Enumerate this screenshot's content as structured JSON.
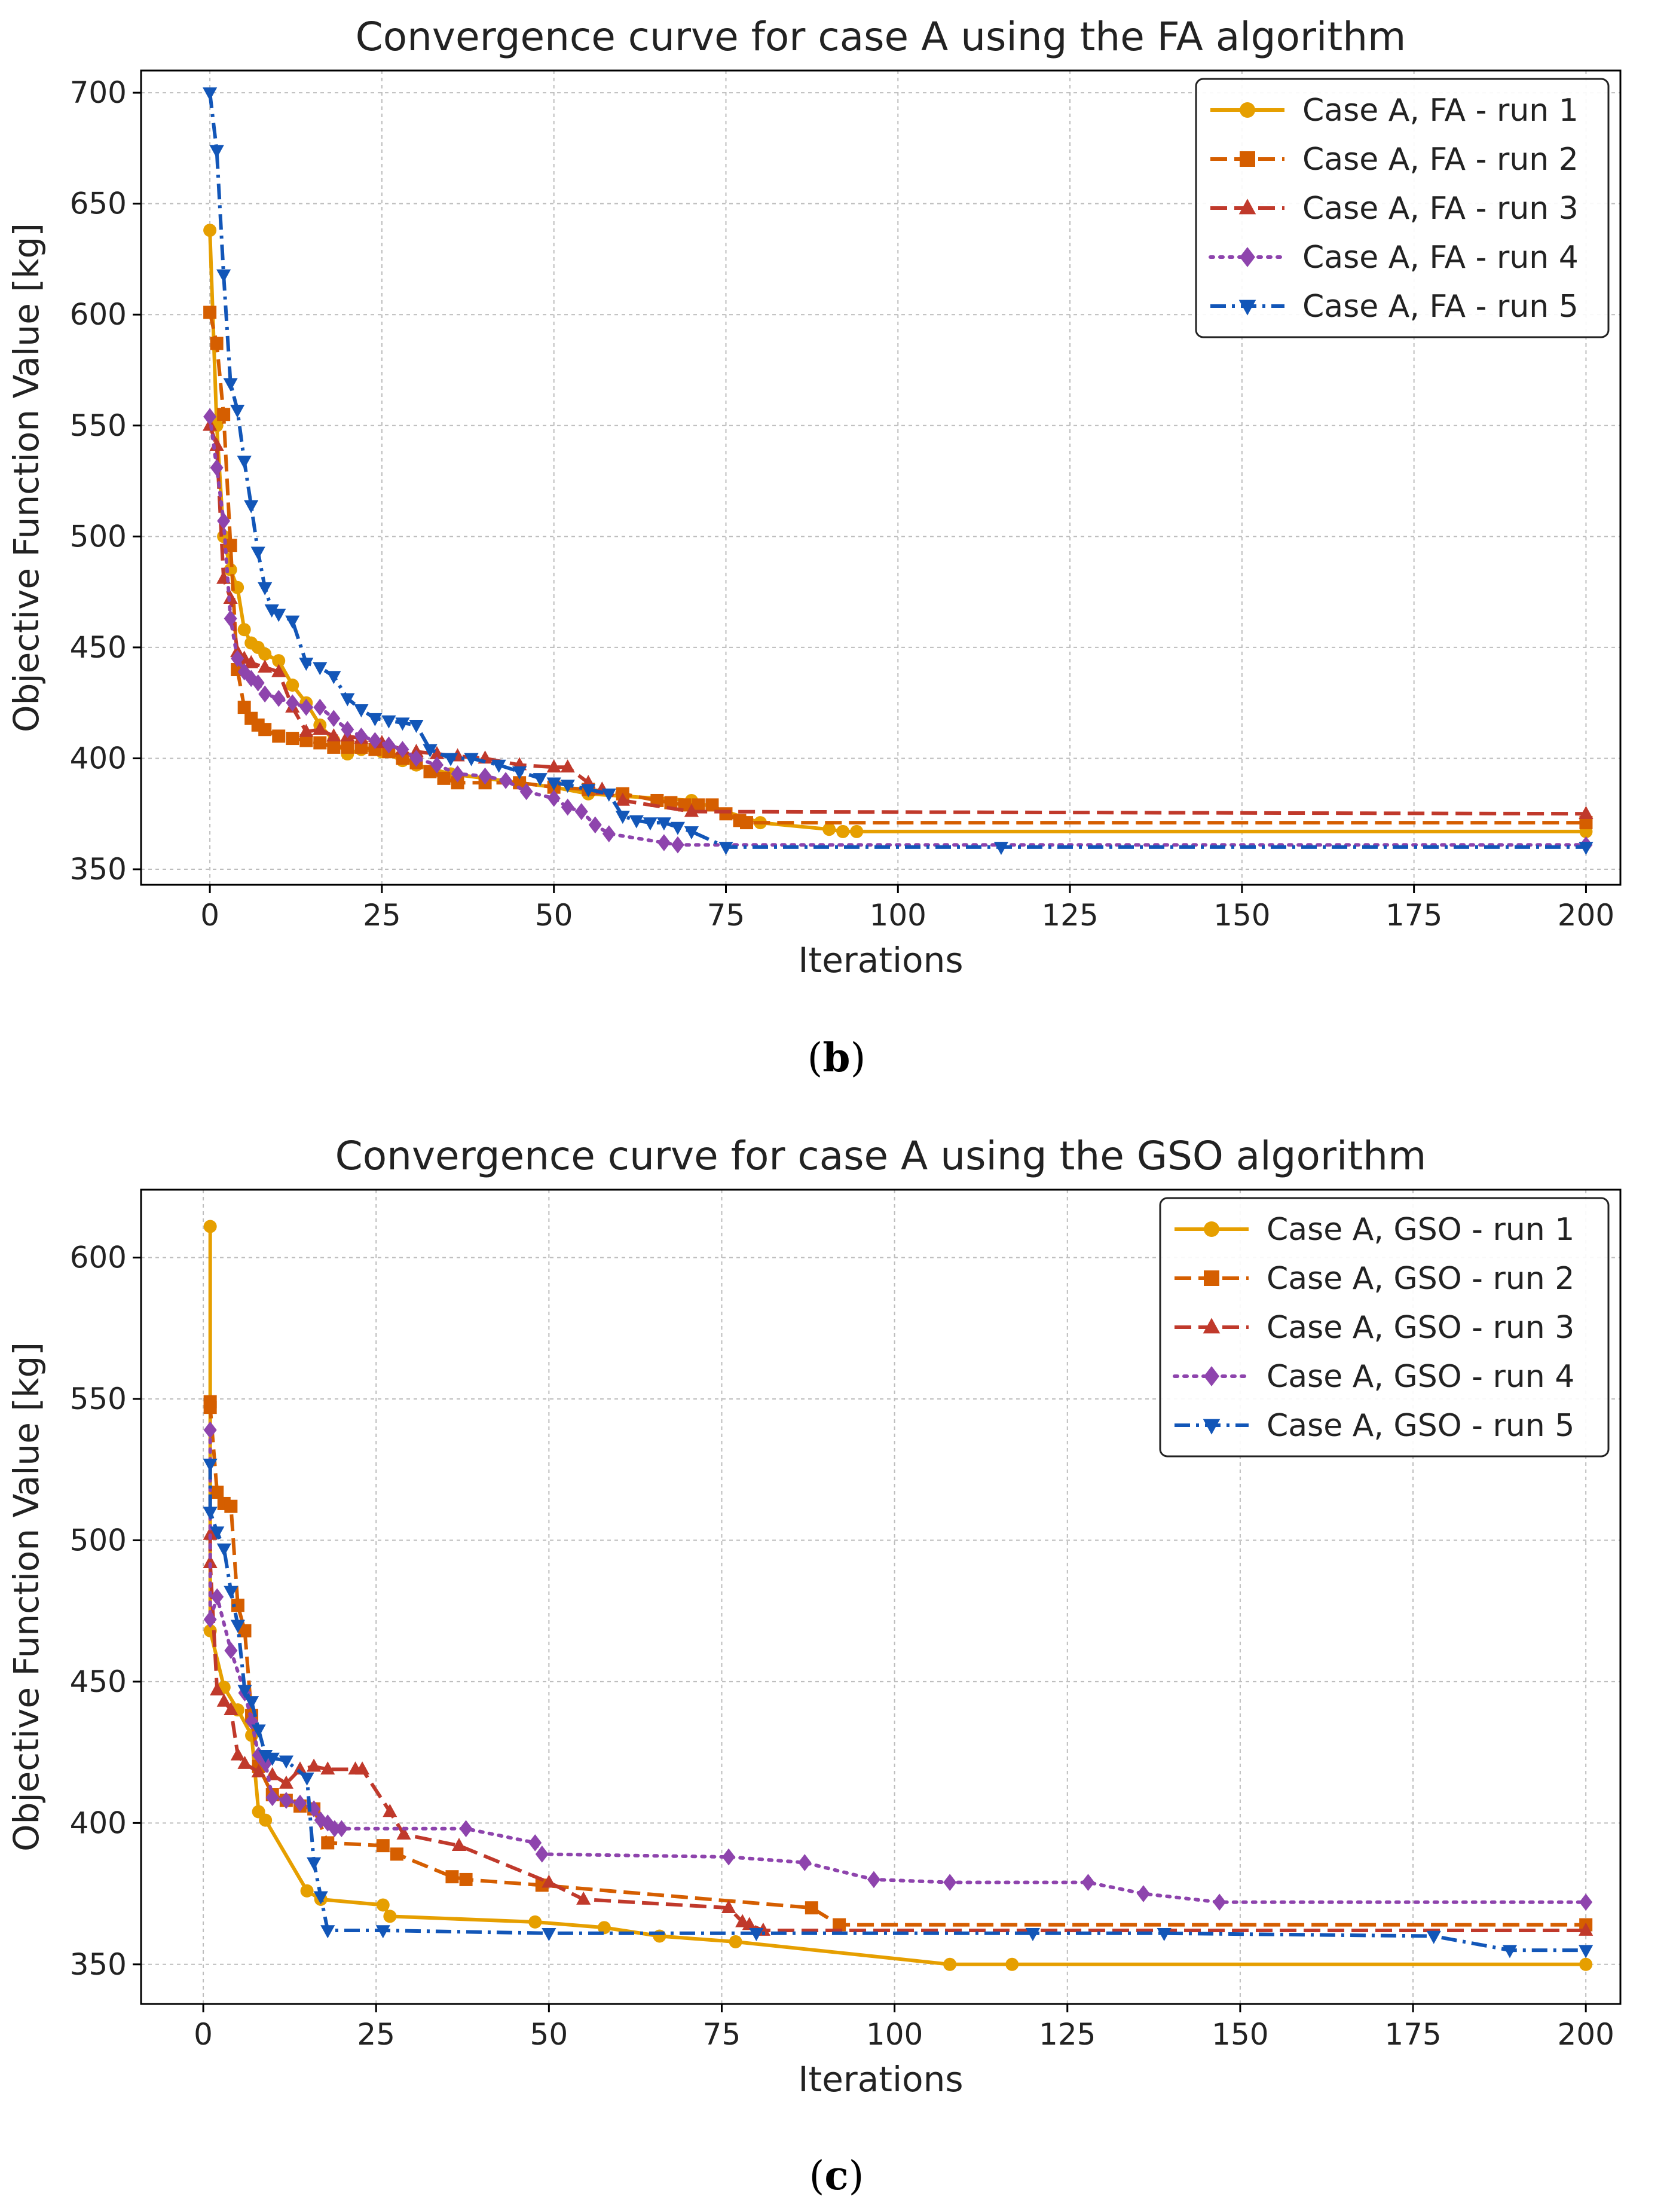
{
  "chart_data": [
    {
      "type": "line",
      "title": "Convergence curve for case A using the FA algorithm",
      "xlabel": "Iterations",
      "ylabel": "Objective Function Value [kg]",
      "xlim": [
        -10,
        205
      ],
      "ylim": [
        343,
        710
      ],
      "xticks": [
        0,
        25,
        50,
        75,
        100,
        125,
        150,
        175,
        200
      ],
      "yticks": [
        350,
        400,
        450,
        500,
        550,
        600,
        650,
        700
      ],
      "grid": true,
      "legend_position": "top-right",
      "series": [
        {
          "name": "Case A, FA - run 1",
          "color": "#E69F00",
          "dash": "solid",
          "marker": "circle",
          "x": [
            0,
            1,
            2,
            3,
            4,
            5,
            6,
            7,
            8,
            10,
            12,
            14,
            16,
            18,
            20,
            22,
            25,
            28,
            30,
            35,
            40,
            45,
            50,
            55,
            60,
            70,
            80,
            90,
            92,
            94,
            200
          ],
          "y": [
            638,
            550,
            500,
            485,
            477,
            458,
            452,
            450,
            447,
            444,
            433,
            425,
            415,
            408,
            402,
            404,
            403,
            399,
            397,
            393,
            391,
            389,
            387,
            384,
            383,
            381,
            371,
            368,
            367,
            367,
            367
          ]
        },
        {
          "name": "Case A, FA - run 2",
          "color": "#D55E00",
          "dash": "dashed",
          "marker": "square",
          "x": [
            0,
            1,
            2,
            3,
            4,
            5,
            6,
            7,
            8,
            10,
            12,
            14,
            16,
            18,
            20,
            22,
            24,
            26,
            28,
            30,
            32,
            34,
            36,
            40,
            45,
            50,
            55,
            60,
            65,
            67,
            69,
            71,
            73,
            75,
            77,
            78,
            200
          ],
          "y": [
            601,
            587,
            555,
            496,
            440,
            423,
            418,
            415,
            413,
            410,
            409,
            408,
            407,
            405,
            405,
            405,
            404,
            403,
            400,
            398,
            394,
            391,
            389,
            389,
            389,
            387,
            386,
            384,
            381,
            380,
            379,
            379,
            379,
            375,
            372,
            371,
            371
          ]
        },
        {
          "name": "Case A, FA - run 3",
          "color": "#C0392B",
          "dash": "dashed",
          "marker": "triangle",
          "x": [
            0,
            1,
            2,
            3,
            4,
            5,
            6,
            8,
            10,
            12,
            14,
            16,
            18,
            20,
            22,
            25,
            28,
            30,
            33,
            36,
            40,
            45,
            50,
            52,
            55,
            57,
            60,
            70,
            200
          ],
          "y": [
            550,
            541,
            481,
            472,
            448,
            445,
            443,
            441,
            439,
            423,
            412,
            413,
            410,
            410,
            409,
            407,
            404,
            403,
            402,
            401,
            400,
            397,
            396,
            396,
            389,
            386,
            381,
            376,
            375
          ]
        },
        {
          "name": "Case A, FA - run 4",
          "color": "#8E44AD",
          "dash": "dotted",
          "marker": "diamond",
          "x": [
            0,
            1,
            2,
            3,
            4,
            5,
            6,
            7,
            8,
            10,
            12,
            14,
            16,
            18,
            20,
            22,
            24,
            26,
            28,
            30,
            33,
            36,
            40,
            43,
            46,
            50,
            52,
            54,
            56,
            58,
            66,
            68,
            200
          ],
          "y": [
            554,
            531,
            507,
            463,
            445,
            439,
            436,
            434,
            429,
            427,
            425,
            423,
            423,
            418,
            413,
            410,
            408,
            406,
            404,
            400,
            397,
            393,
            392,
            390,
            385,
            382,
            378,
            376,
            370,
            366,
            362,
            361,
            361
          ]
        },
        {
          "name": "Case A, FA - run 5",
          "color": "#1256B8",
          "dash": "dashdot",
          "marker": "triangle-down",
          "x": [
            0,
            1,
            2,
            3,
            4,
            5,
            6,
            7,
            8,
            9,
            10,
            12,
            14,
            16,
            18,
            20,
            22,
            24,
            26,
            28,
            30,
            32,
            35,
            38,
            42,
            45,
            48,
            50,
            52,
            55,
            58,
            60,
            62,
            64,
            66,
            68,
            70,
            75,
            115,
            200
          ],
          "y": [
            700,
            674,
            618,
            569,
            557,
            534,
            514,
            493,
            477,
            467,
            465,
            462,
            443,
            441,
            437,
            427,
            422,
            418,
            417,
            416,
            415,
            404,
            400,
            400,
            397,
            394,
            391,
            389,
            388,
            386,
            384,
            374,
            372,
            371,
            371,
            369,
            367,
            360,
            360,
            360
          ]
        }
      ]
    },
    {
      "type": "line",
      "title": "Convergence curve for case A using the GSO algorithm",
      "xlabel": "Iterations",
      "ylabel": "Objective Function Value [kg]",
      "xlim": [
        -9,
        205
      ],
      "ylim": [
        336,
        624
      ],
      "xticks": [
        0,
        25,
        50,
        75,
        100,
        125,
        150,
        175,
        200
      ],
      "yticks": [
        350,
        400,
        450,
        500,
        550,
        600
      ],
      "grid": true,
      "legend_position": "top-right",
      "series": [
        {
          "name": "Case A, GSO - run 1",
          "color": "#E69F00",
          "dash": "solid",
          "marker": "circle",
          "x": [
            1,
            1,
            3,
            5,
            7,
            8,
            9,
            15,
            17,
            26,
            27,
            48,
            58,
            66,
            77,
            108,
            117,
            200
          ],
          "y": [
            611,
            468,
            448,
            440,
            431,
            404,
            401,
            376,
            373,
            371,
            367,
            365,
            363,
            360,
            358,
            350,
            350,
            350
          ]
        },
        {
          "name": "Case A, GSO - run 2",
          "color": "#D55E00",
          "dash": "dashed",
          "marker": "square",
          "x": [
            1,
            1,
            2,
            3,
            4,
            5,
            6,
            7,
            8,
            10,
            12,
            14,
            16,
            18,
            26,
            28,
            36,
            38,
            49,
            88,
            92,
            200
          ],
          "y": [
            549,
            547,
            517,
            513,
            512,
            477,
            468,
            438,
            420,
            410,
            408,
            406,
            405,
            393,
            392,
            389,
            381,
            380,
            378,
            370,
            364,
            364
          ]
        },
        {
          "name": "Case A, GSO - run 3",
          "color": "#C0392B",
          "dash": "dashed",
          "marker": "triangle",
          "x": [
            1,
            1,
            2,
            3,
            4,
            5,
            6,
            8,
            10,
            12,
            14,
            16,
            18,
            22,
            23,
            27,
            29,
            37,
            50,
            55,
            76,
            78,
            79,
            81,
            200
          ],
          "y": [
            502,
            492,
            447,
            443,
            440,
            424,
            421,
            418,
            417,
            414,
            419,
            420,
            419,
            419,
            419,
            404,
            396,
            392,
            379,
            373,
            370,
            365,
            364,
            362,
            362
          ]
        },
        {
          "name": "Case A, GSO - run 4",
          "color": "#8E44AD",
          "dash": "dotted",
          "marker": "diamond",
          "x": [
            1,
            1,
            2,
            4,
            6,
            7,
            8,
            9,
            10,
            12,
            14,
            16,
            17,
            18,
            19,
            20,
            38,
            48,
            49,
            76,
            87,
            97,
            108,
            128,
            136,
            147,
            200
          ],
          "y": [
            539,
            472,
            480,
            461,
            446,
            436,
            424,
            421,
            409,
            408,
            407,
            405,
            401,
            400,
            398,
            398,
            398,
            393,
            389,
            388,
            386,
            380,
            379,
            379,
            375,
            372,
            372
          ]
        },
        {
          "name": "Case A, GSO - run 5",
          "color": "#1256B8",
          "dash": "dashdot",
          "marker": "triangle-down",
          "x": [
            1,
            1,
            2,
            3,
            4,
            5,
            6,
            7,
            8,
            9,
            10,
            12,
            15,
            16,
            17,
            18,
            26,
            50,
            80,
            120,
            139,
            178,
            189,
            200
          ],
          "y": [
            527,
            510,
            503,
            497,
            482,
            470,
            447,
            443,
            433,
            424,
            423,
            422,
            416,
            386,
            374,
            362,
            362,
            361,
            361,
            361,
            361,
            360,
            355,
            355
          ]
        }
      ]
    }
  ],
  "panel_labels": [
    "(b)",
    "(c)"
  ]
}
